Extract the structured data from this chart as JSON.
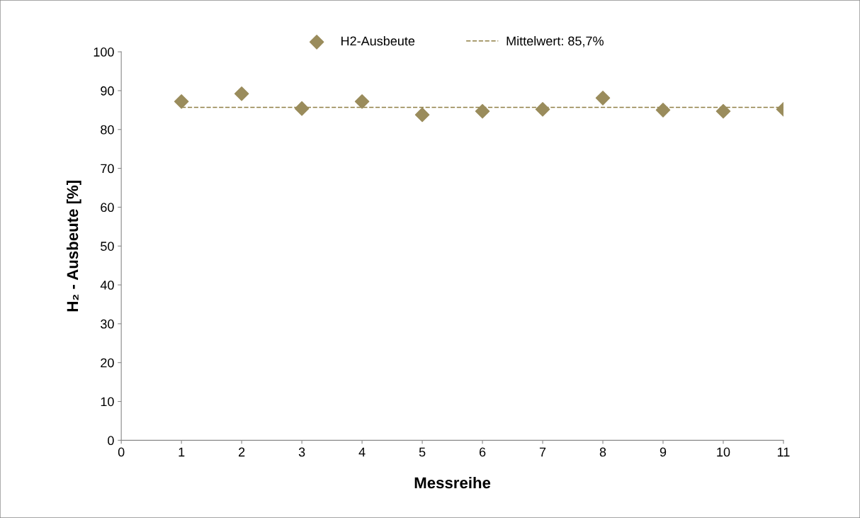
{
  "chart_data": {
    "type": "scatter",
    "xlabel": "Messreihe",
    "ylabel": "H₂ - Ausbeute [%]",
    "x": [
      1,
      2,
      3,
      4,
      5,
      6,
      7,
      8,
      9,
      10,
      11
    ],
    "series": [
      {
        "name": "H2-Ausbeute",
        "color": "#9a8c5c",
        "values": [
          87.2,
          89.2,
          85.4,
          87.2,
          83.8,
          84.7,
          85.2,
          88.1,
          85.0,
          84.7,
          85.2
        ],
        "marker": "diamond"
      },
      {
        "name": "Mittelwert: 85,7%",
        "type": "line",
        "color": "#8f7f45",
        "x": [
          1,
          11
        ],
        "values": [
          85.7,
          85.7
        ],
        "line_style": "dashed",
        "marker": "none"
      }
    ],
    "xlim": [
      0,
      11
    ],
    "xticks": [
      0,
      1,
      2,
      3,
      4,
      5,
      6,
      7,
      8,
      9,
      10,
      11
    ],
    "ylim": [
      0,
      100
    ],
    "yticks": [
      0,
      10,
      20,
      30,
      40,
      50,
      60,
      70,
      80,
      90,
      100
    ],
    "grid": false,
    "legend": "top"
  }
}
